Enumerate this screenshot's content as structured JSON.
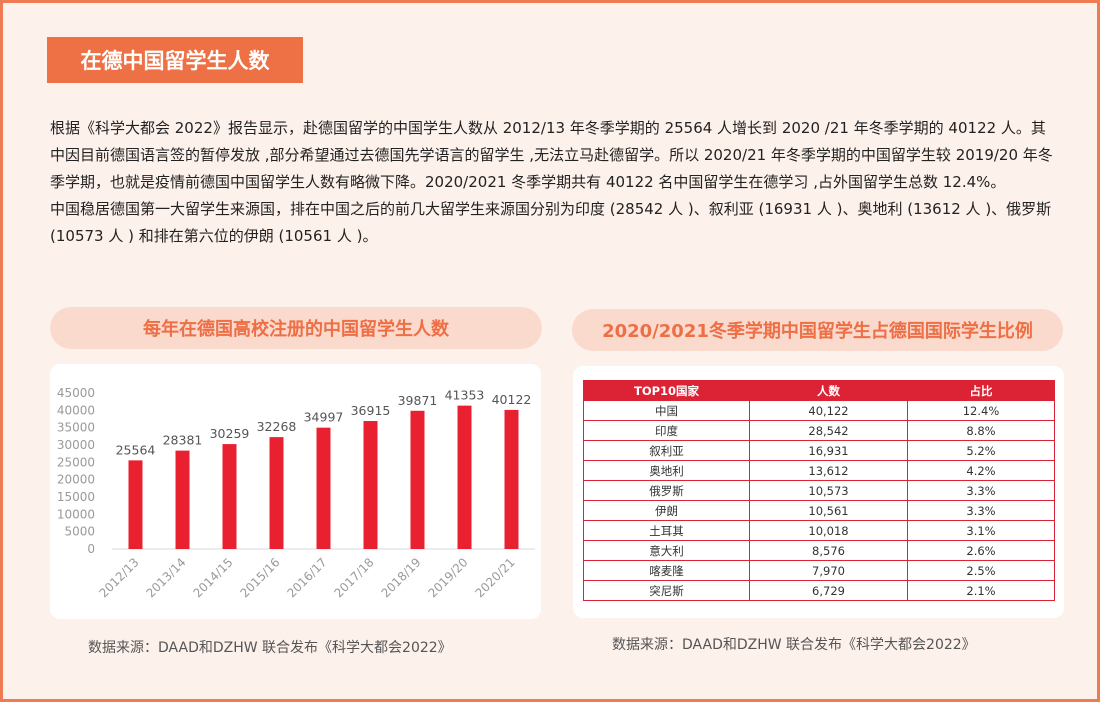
{
  "page": {
    "title": "在德中国留学生人数",
    "paragraphs": [
      "根据《科学大都会 2022》报告显示，赴德国留学的中国学生人数从 2012/13 年冬季学期的 25564 人增长到 2020 /21 年冬季学期的 40122 人。其中因目前德国语言签的暂停发放 ,部分希望通过去德国先学语言的留学生 ,无法立马赴德留学。所以 2020/21 年冬季学期的中国留学生较 2019/20 年冬季学期，也就是疫情前德国中国留学生人数有略微下降。2020/2021 冬季学期共有 40122 名中国留学生在德学习 ,占外国留学生总数 12.4%。",
      "中国稳居德国第一大留学生来源国，排在中国之后的前几大留学生来源国分别为印度 (28542 人 )、叙利亚 (16931 人 )、奥地利 (13612 人 )、俄罗斯 (10573 人 ) 和排在第六位的伊朗 (10561 人 )。"
    ]
  },
  "left_panel": {
    "heading": "每年在德国高校注册的中国留学生人数",
    "source": "数据来源：DAAD和DZHW 联合发布《科学大都会2022》"
  },
  "right_panel": {
    "heading": "2020/2021冬季学期中国留学生占德国国际学生比例",
    "source": "数据来源：DAAD和DZHW 联合发布《科学大都会2022》",
    "headers": [
      "TOP10国家",
      "人数",
      "占比"
    ],
    "rows": [
      [
        "中国",
        "40,122",
        "12.4%"
      ],
      [
        "印度",
        "28,542",
        "8.8%"
      ],
      [
        "叙利亚",
        "16,931",
        "5.2%"
      ],
      [
        "奥地利",
        "13,612",
        "4.2%"
      ],
      [
        "俄罗斯",
        "10,573",
        "3.3%"
      ],
      [
        "伊朗",
        "10,561",
        "3.3%"
      ],
      [
        "土耳其",
        "10,018",
        "3.1%"
      ],
      [
        "意大利",
        "8,576",
        "2.6%"
      ],
      [
        "喀麦隆",
        "7,970",
        "2.5%"
      ],
      [
        "突尼斯",
        "6,729",
        "2.1%"
      ]
    ]
  },
  "chart_data": [
    {
      "type": "bar",
      "categories": [
        "2012/13",
        "2013/14",
        "2014/15",
        "2015/16",
        "2016/17",
        "2017/18",
        "2018/19",
        "2019/20",
        "2020/21"
      ],
      "values": [
        25564,
        28381,
        30259,
        32268,
        34997,
        36915,
        39871,
        41353,
        40122
      ],
      "title": "每年在德国高校注册的中国留学生人数",
      "xlabel": "",
      "ylabel": "",
      "ylim": [
        0,
        45000
      ],
      "yticks": [
        0,
        5000,
        10000,
        15000,
        20000,
        25000,
        30000,
        35000,
        40000,
        45000
      ],
      "grid": false,
      "bar_color": "#e8202f",
      "data_labels": true
    },
    {
      "type": "table",
      "title": "2020/2021冬季学期中国留学生占德国国际学生比例",
      "columns": [
        "TOP10国家",
        "人数",
        "占比"
      ],
      "rows": [
        [
          "中国",
          40122,
          "12.4%"
        ],
        [
          "印度",
          28542,
          "8.8%"
        ],
        [
          "叙利亚",
          16931,
          "5.2%"
        ],
        [
          "奥地利",
          13612,
          "4.2%"
        ],
        [
          "俄罗斯",
          10573,
          "3.3%"
        ],
        [
          "伊朗",
          10561,
          "3.3%"
        ],
        [
          "土耳其",
          10018,
          "3.1%"
        ],
        [
          "意大利",
          8576,
          "2.6%"
        ],
        [
          "喀麦隆",
          7970,
          "2.5%"
        ],
        [
          "突尼斯",
          6729,
          "2.1%"
        ]
      ]
    }
  ],
  "colors": {
    "accent": "#ee7045",
    "background": "#fdf1ec",
    "pill": "#f9dacd",
    "bar": "#e8202f",
    "table_red": "#db2335"
  }
}
